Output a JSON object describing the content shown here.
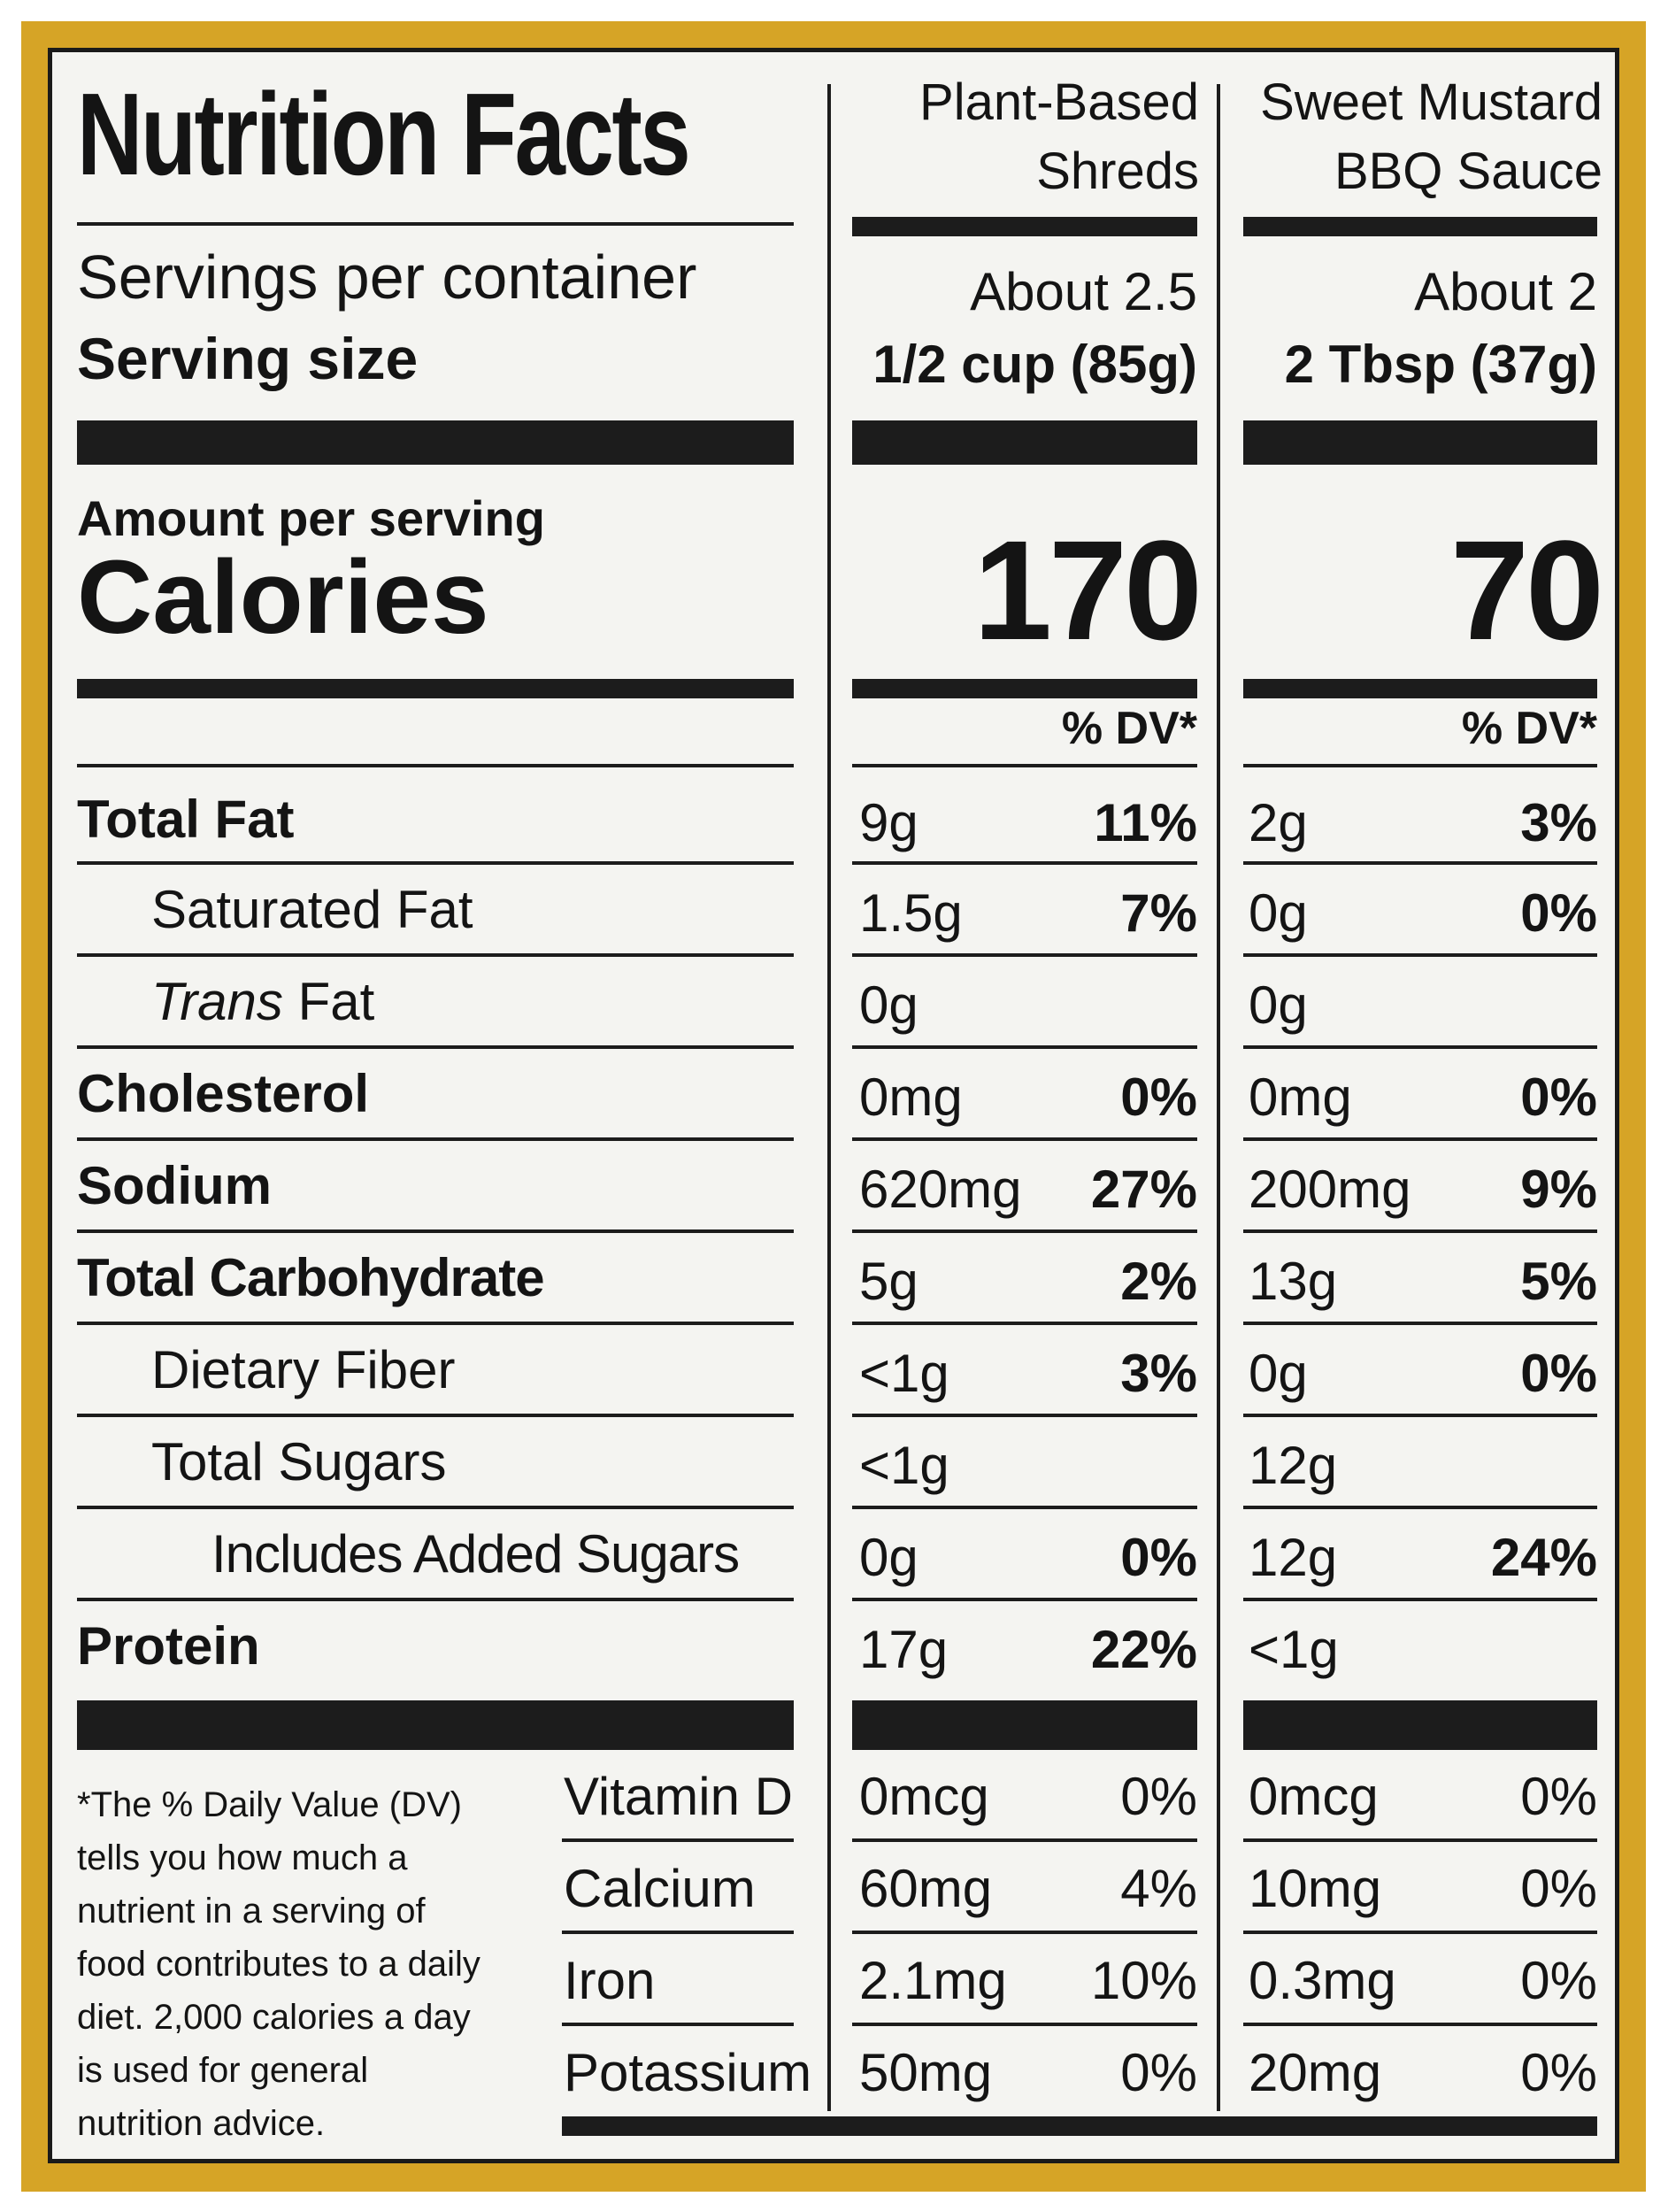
{
  "title": "Nutrition Facts",
  "columns": [
    {
      "name_line1": "Plant-Based",
      "name_line2": "Shreds",
      "servings": "About 2.5",
      "serving_size": "1/2 cup (85g)",
      "calories": "170",
      "dv_header": "% DV*"
    },
    {
      "name_line1": "Sweet Mustard",
      "name_line2": "BBQ Sauce",
      "servings": "About 2",
      "serving_size": "2 Tbsp (37g)",
      "calories": "70",
      "dv_header": "% DV*"
    }
  ],
  "servings_label": "Servings per container",
  "serving_size_label": "Serving size",
  "amount_per_serving": "Amount per serving",
  "calories_label": "Calories",
  "nutrients": [
    {
      "label": "Total Fat",
      "c1_amt": "9g",
      "c1_dv": "11%",
      "c2_amt": "2g",
      "c2_dv": "3%"
    },
    {
      "label": "Saturated Fat",
      "c1_amt": "1.5g",
      "c1_dv": "7%",
      "c2_amt": "0g",
      "c2_dv": "0%"
    },
    {
      "label_italic": "Trans",
      "label": "Fat",
      "c1_amt": "0g",
      "c1_dv": "",
      "c2_amt": "0g",
      "c2_dv": ""
    },
    {
      "label": "Cholesterol",
      "c1_amt": "0mg",
      "c1_dv": "0%",
      "c2_amt": "0mg",
      "c2_dv": "0%"
    },
    {
      "label": "Sodium",
      "c1_amt": "620mg",
      "c1_dv": "27%",
      "c2_amt": "200mg",
      "c2_dv": "9%"
    },
    {
      "label": "Total Carbohydrate",
      "c1_amt": "5g",
      "c1_dv": "2%",
      "c2_amt": "13g",
      "c2_dv": "5%"
    },
    {
      "label": "Dietary Fiber",
      "c1_amt": "<1g",
      "c1_dv": "3%",
      "c2_amt": "0g",
      "c2_dv": "0%"
    },
    {
      "label": "Total Sugars",
      "c1_amt": "<1g",
      "c1_dv": "",
      "c2_amt": "12g",
      "c2_dv": ""
    },
    {
      "label": "Includes Added Sugars",
      "c1_amt": "0g",
      "c1_dv": "0%",
      "c2_amt": "12g",
      "c2_dv": "24%"
    },
    {
      "label": "Protein",
      "c1_amt": "17g",
      "c1_dv": "22%",
      "c2_amt": "<1g",
      "c2_dv": ""
    }
  ],
  "vitamins": [
    {
      "label": "Vitamin D",
      "c1_amt": "0mcg",
      "c1_dv": "0%",
      "c2_amt": "0mcg",
      "c2_dv": "0%"
    },
    {
      "label": "Calcium",
      "c1_amt": "60mg",
      "c1_dv": "4%",
      "c2_amt": "10mg",
      "c2_dv": "0%"
    },
    {
      "label": "Iron",
      "c1_amt": "2.1mg",
      "c1_dv": "10%",
      "c2_amt": "0.3mg",
      "c2_dv": "0%"
    },
    {
      "label": "Potassium",
      "c1_amt": "50mg",
      "c1_dv": "0%",
      "c2_amt": "20mg",
      "c2_dv": "0%"
    }
  ],
  "footnote": "*The % Daily Value (DV)\ntells you how much a\nnutrient in a serving of\nfood contributes to a daily\ndiet. 2,000 calories a day\nis used for general\nnutrition advice.",
  "colors": {
    "border": "#d6a426",
    "panel": "#f4f4f1",
    "ink": "#141414"
  }
}
